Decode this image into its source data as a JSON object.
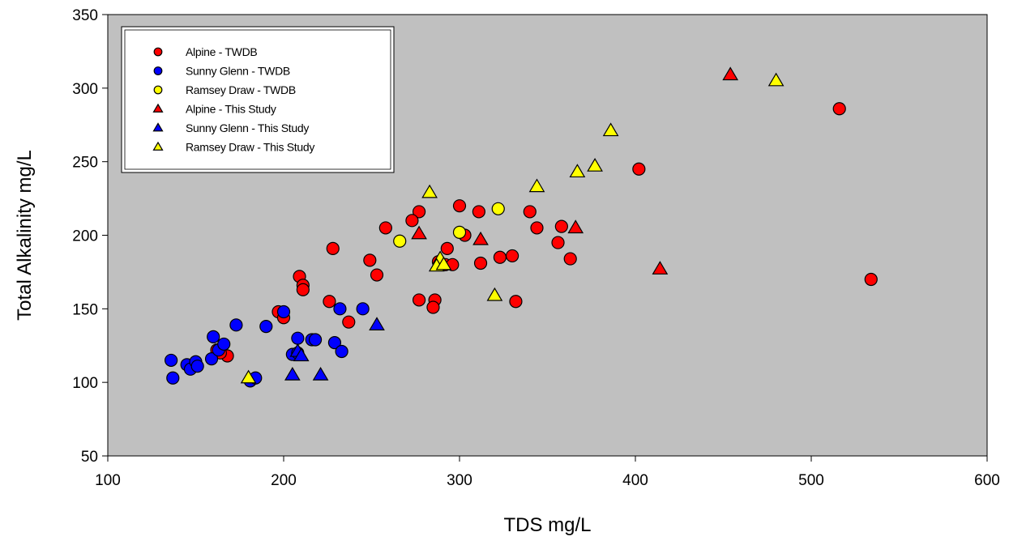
{
  "chart_data": {
    "type": "scatter",
    "title": "",
    "xlabel": "TDS mg/L",
    "ylabel": "Total Alkalinity mg/L",
    "xlim": [
      100,
      600
    ],
    "ylim": [
      50,
      350
    ],
    "xticks": [
      100,
      200,
      300,
      400,
      500,
      600
    ],
    "yticks": [
      50,
      100,
      150,
      200,
      250,
      300,
      350
    ],
    "grid": false,
    "plot_background": "#c0c0c0",
    "legend_position": "top-left",
    "series": [
      {
        "name": "Alpine - TWDB",
        "marker": "circle",
        "color": "#ff0000",
        "points": [
          [
            516,
            286
          ],
          [
            534,
            170
          ],
          [
            402,
            245
          ],
          [
            300,
            220
          ],
          [
            277,
            216
          ],
          [
            311,
            216
          ],
          [
            340,
            216
          ],
          [
            273,
            210
          ],
          [
            258,
            205
          ],
          [
            344,
            205
          ],
          [
            358,
            206
          ],
          [
            303,
            200
          ],
          [
            356,
            195
          ],
          [
            363,
            184
          ],
          [
            228,
            191
          ],
          [
            293,
            191
          ],
          [
            249,
            183
          ],
          [
            253,
            173
          ],
          [
            323,
            185
          ],
          [
            330,
            186
          ],
          [
            288,
            182
          ],
          [
            312,
            181
          ],
          [
            292,
            180
          ],
          [
            296,
            180
          ],
          [
            209,
            172
          ],
          [
            211,
            166
          ],
          [
            211,
            163
          ],
          [
            277,
            156
          ],
          [
            286,
            156
          ],
          [
            332,
            155
          ],
          [
            226,
            155
          ],
          [
            285,
            151
          ],
          [
            197,
            148
          ],
          [
            200,
            144
          ],
          [
            237,
            141
          ],
          [
            162,
            122
          ],
          [
            168,
            118
          ],
          [
            164,
            120
          ]
        ]
      },
      {
        "name": "Sunny Glenn - TWDB",
        "marker": "circle",
        "color": "#0000ff",
        "points": [
          [
            136,
            115
          ],
          [
            137,
            103
          ],
          [
            145,
            112
          ],
          [
            147,
            109
          ],
          [
            150,
            114
          ],
          [
            151,
            111
          ],
          [
            159,
            116
          ],
          [
            160,
            131
          ],
          [
            163,
            122
          ],
          [
            166,
            126
          ],
          [
            173,
            139
          ],
          [
            181,
            101
          ],
          [
            184,
            103
          ],
          [
            190,
            138
          ],
          [
            200,
            148
          ],
          [
            205,
            119
          ],
          [
            208,
            130
          ],
          [
            208,
            120
          ],
          [
            216,
            129
          ],
          [
            218,
            129
          ],
          [
            229,
            127
          ],
          [
            232,
            150
          ],
          [
            233,
            121
          ],
          [
            245,
            150
          ]
        ]
      },
      {
        "name": "Ramsey Draw - TWDB",
        "marker": "circle",
        "color": "#ffff00",
        "points": [
          [
            266,
            196
          ],
          [
            300,
            202
          ],
          [
            322,
            218
          ]
        ]
      },
      {
        "name": "Alpine - This Study",
        "marker": "triangle",
        "color": "#ff0000",
        "points": [
          [
            454,
            309
          ],
          [
            277,
            201
          ],
          [
            312,
            197
          ],
          [
            366,
            205
          ],
          [
            414,
            177
          ]
        ]
      },
      {
        "name": "Sunny Glenn - This Study",
        "marker": "triangle",
        "color": "#0000ff",
        "points": [
          [
            253,
            139
          ],
          [
            208,
            121
          ],
          [
            210,
            118
          ],
          [
            205,
            105
          ],
          [
            221,
            105
          ]
        ]
      },
      {
        "name": "Ramsey Draw - This Study",
        "marker": "triangle",
        "color": "#ffff00",
        "points": [
          [
            480,
            305
          ],
          [
            386,
            271
          ],
          [
            377,
            247
          ],
          [
            367,
            243
          ],
          [
            344,
            233
          ],
          [
            283,
            229
          ],
          [
            289,
            184
          ],
          [
            287,
            179
          ],
          [
            291,
            180
          ],
          [
            320,
            159
          ],
          [
            180,
            103
          ]
        ]
      }
    ]
  }
}
